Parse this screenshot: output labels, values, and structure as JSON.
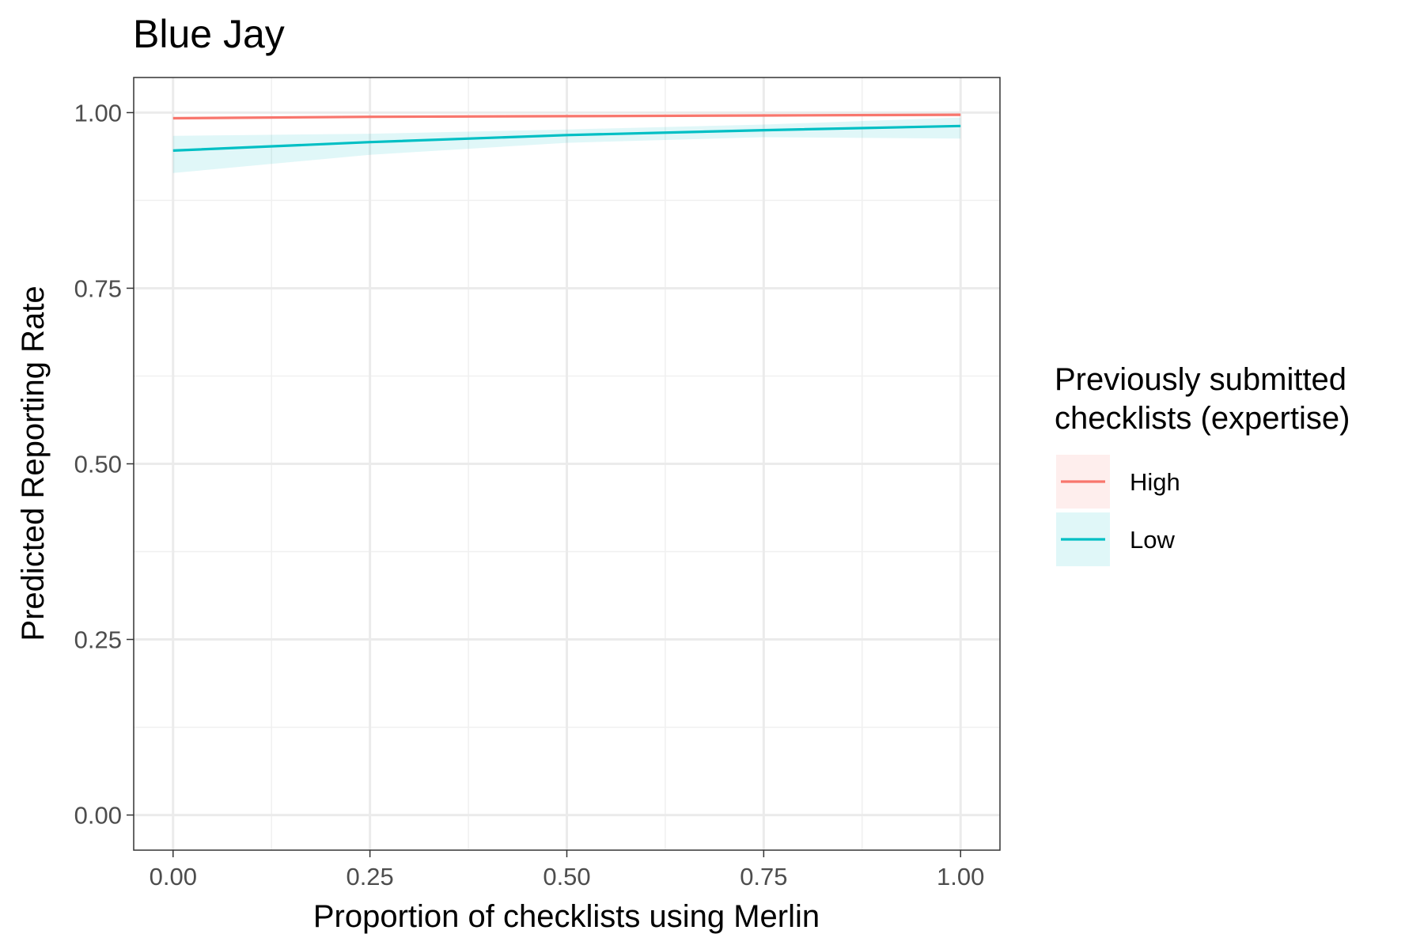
{
  "chart_data": {
    "type": "line",
    "title": "Blue Jay",
    "xlabel": "Proportion of checklists using Merlin",
    "ylabel": "Predicted Reporting Rate",
    "xlim": [
      -0.05,
      1.05
    ],
    "ylim": [
      -0.05,
      1.05
    ],
    "x_ticks": [
      "0.00",
      "0.25",
      "0.50",
      "0.75",
      "1.00"
    ],
    "y_ticks": [
      "0.00",
      "0.25",
      "0.50",
      "0.75",
      "1.00"
    ],
    "grid": true,
    "legend": {
      "title_lines": [
        "Previously submitted",
        "checklists (expertise)"
      ],
      "position": "right"
    },
    "series": [
      {
        "name": "High",
        "color": "#F8766D",
        "x": [
          0.0,
          0.25,
          0.5,
          0.75,
          1.0
        ],
        "y": [
          0.992,
          0.994,
          0.995,
          0.996,
          0.997
        ],
        "ci_low": [
          0.99,
          0.992,
          0.994,
          0.995,
          0.995
        ],
        "ci_high": [
          0.994,
          0.996,
          0.997,
          0.997,
          0.998
        ]
      },
      {
        "name": "Low",
        "color": "#00BFC4",
        "x": [
          0.0,
          0.25,
          0.5,
          0.75,
          1.0
        ],
        "y": [
          0.946,
          0.958,
          0.968,
          0.975,
          0.981
        ],
        "ci_low": [
          0.914,
          0.94,
          0.957,
          0.965,
          0.963
        ],
        "ci_high": [
          0.967,
          0.97,
          0.976,
          0.983,
          0.993
        ]
      }
    ]
  }
}
